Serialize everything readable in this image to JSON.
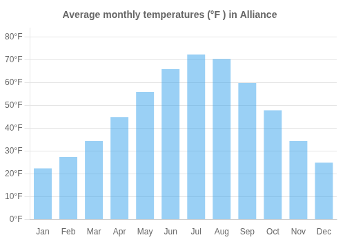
{
  "chart_data": {
    "type": "bar",
    "title": "Average monthly temperatures (°F ) in Alliance",
    "categories": [
      "Jan",
      "Feb",
      "Mar",
      "Apr",
      "May",
      "Jun",
      "Jul",
      "Aug",
      "Sep",
      "Oct",
      "Nov",
      "Dec"
    ],
    "values": [
      22.5,
      27.5,
      34.5,
      45,
      56,
      66,
      72.5,
      70.5,
      60,
      48,
      34.5,
      25
    ],
    "ylim": [
      0,
      84
    ],
    "yticks": [
      {
        "value": 0,
        "label": "0°F"
      },
      {
        "value": 10,
        "label": "10°F"
      },
      {
        "value": 20,
        "label": "20°F"
      },
      {
        "value": 30,
        "label": "30°F"
      },
      {
        "value": 40,
        "label": "40°F"
      },
      {
        "value": 50,
        "label": "50°F"
      },
      {
        "value": 60,
        "label": "60°F"
      },
      {
        "value": 70,
        "label": "70°F"
      },
      {
        "value": 80,
        "label": "80°F"
      }
    ],
    "grid": true
  }
}
